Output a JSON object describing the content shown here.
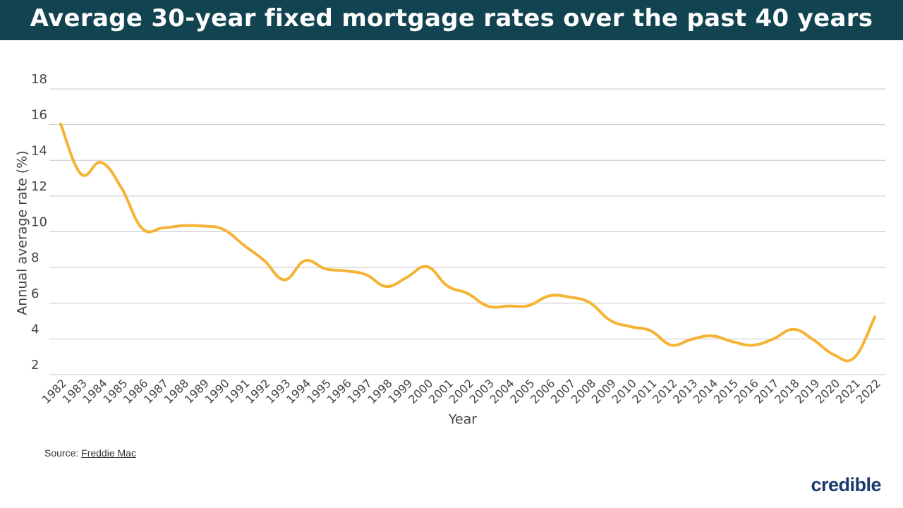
{
  "chart_data": {
    "type": "line",
    "title": "Average 30-year fixed mortgage rates over the past 40 years",
    "x_label": "Year",
    "y_label": "Annual average rate (%)",
    "categories": [
      "1982",
      "1983",
      "1984",
      "1985",
      "1986",
      "1987",
      "1988",
      "1989",
      "1990",
      "1991",
      "1992",
      "1993",
      "1994",
      "1995",
      "1996",
      "1997",
      "1998",
      "1999",
      "2000",
      "2001",
      "2002",
      "2003",
      "2004",
      "2005",
      "2006",
      "2007",
      "2008",
      "2009",
      "2010",
      "2011",
      "2012",
      "2013",
      "2014",
      "2015",
      "2016",
      "2017",
      "2018",
      "2019",
      "2020",
      "2021",
      "2022"
    ],
    "values": [
      16.04,
      13.24,
      13.88,
      12.43,
      10.19,
      10.21,
      10.34,
      10.32,
      10.13,
      9.25,
      8.39,
      7.31,
      8.38,
      7.93,
      7.81,
      7.6,
      6.94,
      7.44,
      8.05,
      6.97,
      6.54,
      5.83,
      5.84,
      5.87,
      6.41,
      6.34,
      6.03,
      5.04,
      4.69,
      4.45,
      3.66,
      3.98,
      4.17,
      3.85,
      3.65,
      3.99,
      4.54,
      3.94,
      3.11,
      2.96,
      5.23
    ],
    "color": "#f5b335",
    "ylim": [
      2,
      18
    ],
    "yticks": [
      2,
      4,
      6,
      8,
      10,
      12,
      14,
      16,
      18
    ],
    "grid": true,
    "source_label": "Source:",
    "source": "Freddie Mac",
    "logo": "credible"
  }
}
